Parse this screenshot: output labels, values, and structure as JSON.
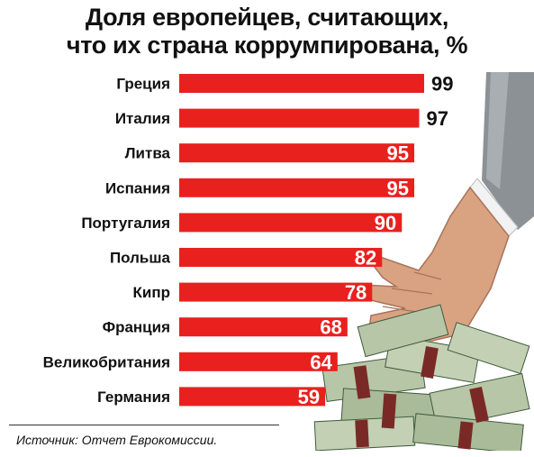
{
  "title": {
    "line1": "Доля европейцев, считающих,",
    "line2": "что их страна коррумпирована, %"
  },
  "source": "Источник: Отчет Еврокомиссии.",
  "colors": {
    "bar": "#e8211f",
    "inside_label": "#ffffff",
    "outside_label": "#111111"
  },
  "chart_data": {
    "type": "bar",
    "orientation": "horizontal",
    "title": "Доля европейцев, считающих, что их страна коррумпирована, %",
    "categories": [
      "Греция",
      "Италия",
      "Литва",
      "Испания",
      "Португалия",
      "Польша",
      "Кипр",
      "Франция",
      "Великобритания",
      "Германия"
    ],
    "values": [
      99,
      97,
      95,
      95,
      90,
      82,
      78,
      68,
      64,
      59
    ],
    "labels": [
      "99",
      "97",
      "95",
      "95",
      "90",
      "82",
      "78",
      "68",
      "64",
      "59"
    ],
    "xlabel": "",
    "ylabel": "",
    "grid": false,
    "legend": "none"
  }
}
